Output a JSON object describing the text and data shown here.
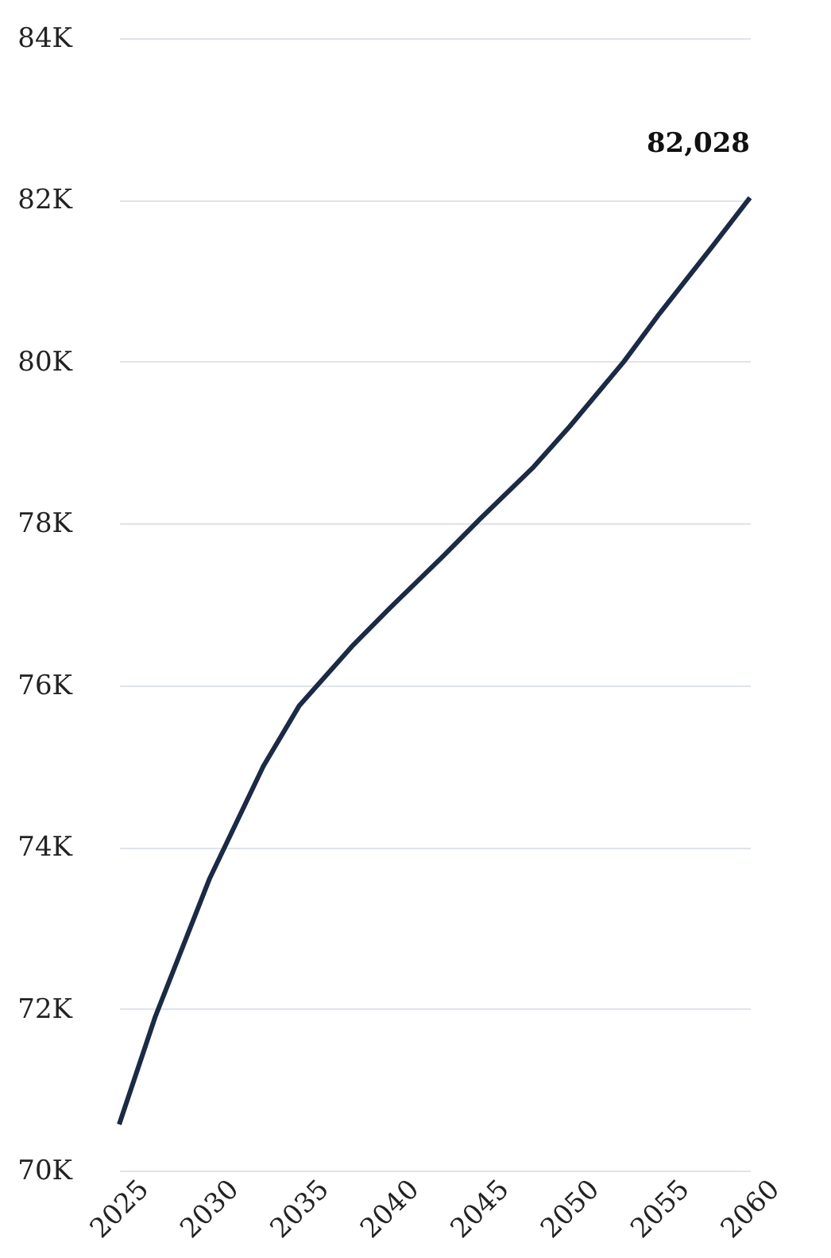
{
  "chart_data": {
    "type": "line",
    "x": [
      2025,
      2027,
      2030,
      2033,
      2035,
      2038,
      2040,
      2043,
      2045,
      2048,
      2050,
      2053,
      2055,
      2058,
      2060
    ],
    "series": [
      {
        "color": "#1b2a45",
        "values": [
          70570,
          71900,
          73600,
          75000,
          75750,
          76500,
          76950,
          77600,
          78050,
          78700,
          79200,
          80000,
          80600,
          81450,
          82028
        ]
      }
    ],
    "xlim": [
      2025,
      2060
    ],
    "xticks": [
      2025,
      2030,
      2035,
      2040,
      2045,
      2050,
      2055,
      2060
    ],
    "ylim": [
      70000,
      84000
    ],
    "yticks": [
      {
        "value": 70000,
        "label": "70K"
      },
      {
        "value": 72000,
        "label": "72K"
      },
      {
        "value": 74000,
        "label": "74K"
      },
      {
        "value": 76000,
        "label": "76K"
      },
      {
        "value": 78000,
        "label": "78K"
      },
      {
        "value": 80000,
        "label": "80K"
      },
      {
        "value": 82000,
        "label": "82K"
      },
      {
        "value": 84000,
        "label": "84K"
      }
    ],
    "annotations": [
      {
        "text": "82,028",
        "x": 2060,
        "y": 82028
      }
    ],
    "grid": "y",
    "marker": "none",
    "line_style": "solid"
  }
}
